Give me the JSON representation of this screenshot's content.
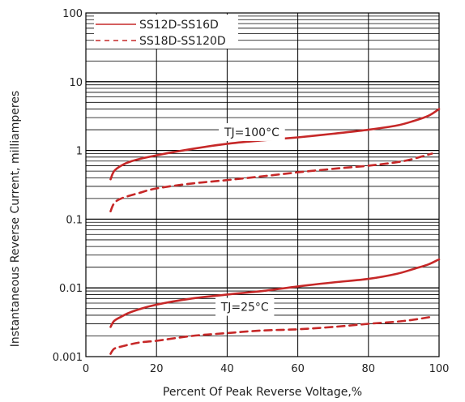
{
  "chart_data": {
    "type": "line",
    "title": "",
    "xlabel": "Percent Of Peak Reverse Voltage,%",
    "ylabel": "Instantaneous Reverse Current, milliamperes",
    "xlim": [
      0,
      100
    ],
    "ylim": [
      0.001,
      100
    ],
    "yscale": "log",
    "grid": true,
    "legend_position": "top-left",
    "x_ticks": [
      "0",
      "20",
      "40",
      "60",
      "80",
      "100"
    ],
    "y_ticks": [
      "0.001",
      "0.01",
      "0.1",
      "1",
      "10",
      "100"
    ],
    "legend": [
      {
        "label": "SS12D-SS16D",
        "style": "solid",
        "color": "#c62828"
      },
      {
        "label": "SS18D-SS120D",
        "style": "dashed",
        "color": "#c62828"
      }
    ],
    "annotations": [
      {
        "text": "TJ=100°C",
        "x": 47,
        "y": 1.85
      },
      {
        "text": "TJ=25°C",
        "x": 45,
        "y": 0.0053
      }
    ],
    "series": [
      {
        "name": "SS12D-SS16D",
        "condition": "TJ=100°C",
        "style": "solid",
        "x": [
          7,
          8,
          10,
          13,
          20,
          30,
          40,
          50,
          60,
          70,
          80,
          88,
          93,
          97,
          100
        ],
        "y": [
          0.38,
          0.5,
          0.6,
          0.7,
          0.85,
          1.05,
          1.25,
          1.4,
          1.55,
          1.75,
          2.0,
          2.3,
          2.7,
          3.2,
          4.0
        ]
      },
      {
        "name": "SS18D-SS120D",
        "condition": "TJ=100°C",
        "style": "dashed",
        "x": [
          7,
          8,
          10,
          15,
          20,
          30,
          40,
          50,
          60,
          70,
          80,
          90,
          98
        ],
        "y": [
          0.13,
          0.17,
          0.2,
          0.24,
          0.28,
          0.33,
          0.37,
          0.42,
          0.48,
          0.54,
          0.6,
          0.7,
          0.9
        ]
      },
      {
        "name": "SS12D-SS16D",
        "condition": "TJ=25°C",
        "style": "solid",
        "x": [
          7,
          8,
          10,
          13,
          20,
          30,
          40,
          50,
          60,
          70,
          80,
          88,
          93,
          97,
          100
        ],
        "y": [
          0.0027,
          0.0033,
          0.0038,
          0.0045,
          0.0057,
          0.007,
          0.008,
          0.009,
          0.0105,
          0.012,
          0.0135,
          0.016,
          0.019,
          0.022,
          0.026
        ]
      },
      {
        "name": "SS18D-SS120D",
        "condition": "TJ=25°C",
        "style": "dashed",
        "x": [
          7,
          8,
          10,
          15,
          20,
          30,
          40,
          50,
          60,
          70,
          80,
          90,
          98
        ],
        "y": [
          0.0011,
          0.0013,
          0.0014,
          0.0016,
          0.0017,
          0.002,
          0.0022,
          0.0024,
          0.0025,
          0.0027,
          0.003,
          0.0033,
          0.0038
        ]
      }
    ],
    "colors": {
      "series": "#c62828",
      "grid": "#000000"
    }
  }
}
